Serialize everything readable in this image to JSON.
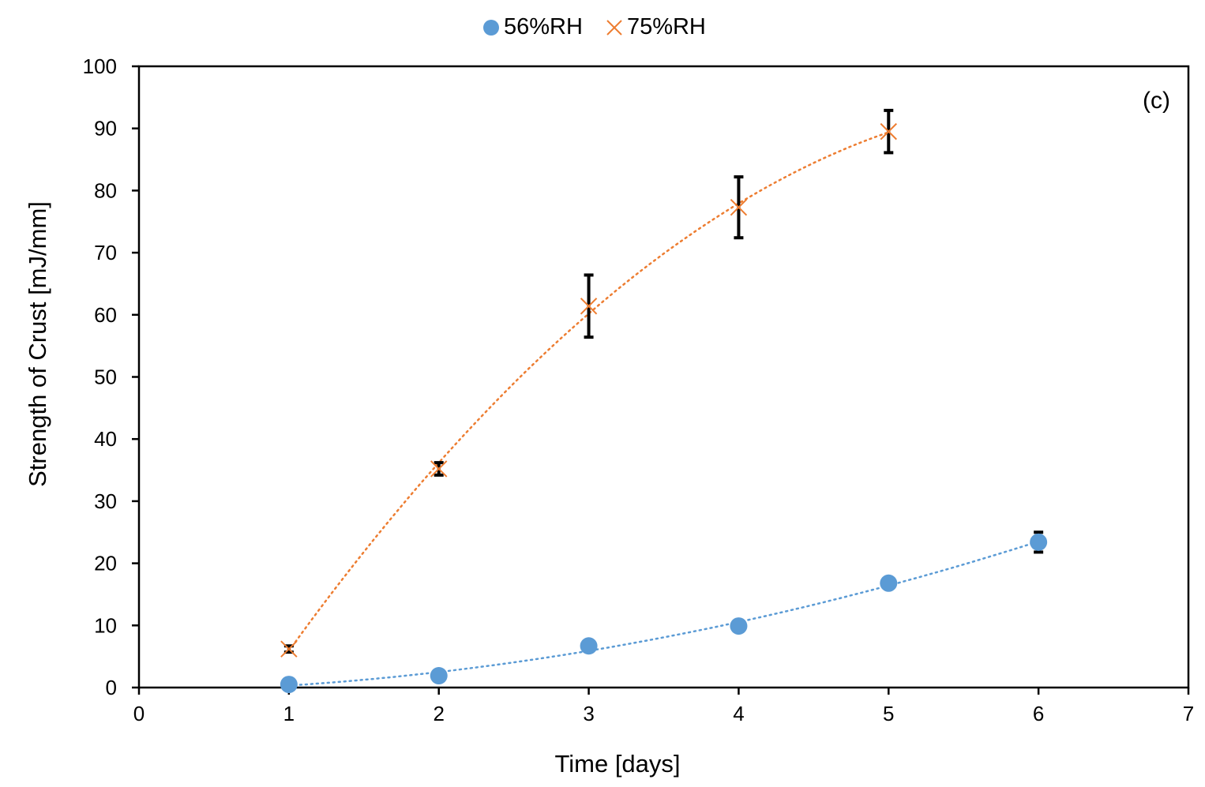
{
  "legend": {
    "items": [
      {
        "label": "56%RH",
        "marker": "circle",
        "color": "#5B9BD5"
      },
      {
        "label": "75%RH",
        "marker": "x",
        "color": "#ED7D31"
      }
    ]
  },
  "panel_label": "(c)",
  "chart_data": {
    "type": "scatter",
    "title": "",
    "xlabel": "Time [days]",
    "ylabel": "Strength of Crust [mJ/mm]",
    "xlim": [
      0,
      7
    ],
    "ylim": [
      0,
      100
    ],
    "xticks": [
      0,
      1,
      2,
      3,
      4,
      5,
      6,
      7
    ],
    "yticks": [
      0,
      10,
      20,
      30,
      40,
      50,
      60,
      70,
      80,
      90,
      100
    ],
    "grid": false,
    "legend_position": "top",
    "annotations": [
      "(c)"
    ],
    "series": [
      {
        "name": "56%RH",
        "marker": "circle",
        "color": "#5B9BD5",
        "trendline": "dotted polynomial",
        "x": [
          1,
          2,
          3,
          4,
          5,
          6
        ],
        "y": [
          0.5,
          1.9,
          6.7,
          9.9,
          16.8,
          23.4
        ],
        "error": [
          0.3,
          0.3,
          0.3,
          0.3,
          0.3,
          1.6
        ]
      },
      {
        "name": "75%RH",
        "marker": "x",
        "color": "#ED7D31",
        "trendline": "dotted polynomial",
        "x": [
          1,
          2,
          3,
          4,
          5
        ],
        "y": [
          6.2,
          35.2,
          61.4,
          77.3,
          89.5
        ],
        "error": [
          0.5,
          1.0,
          5.0,
          4.9,
          3.4
        ]
      }
    ]
  }
}
